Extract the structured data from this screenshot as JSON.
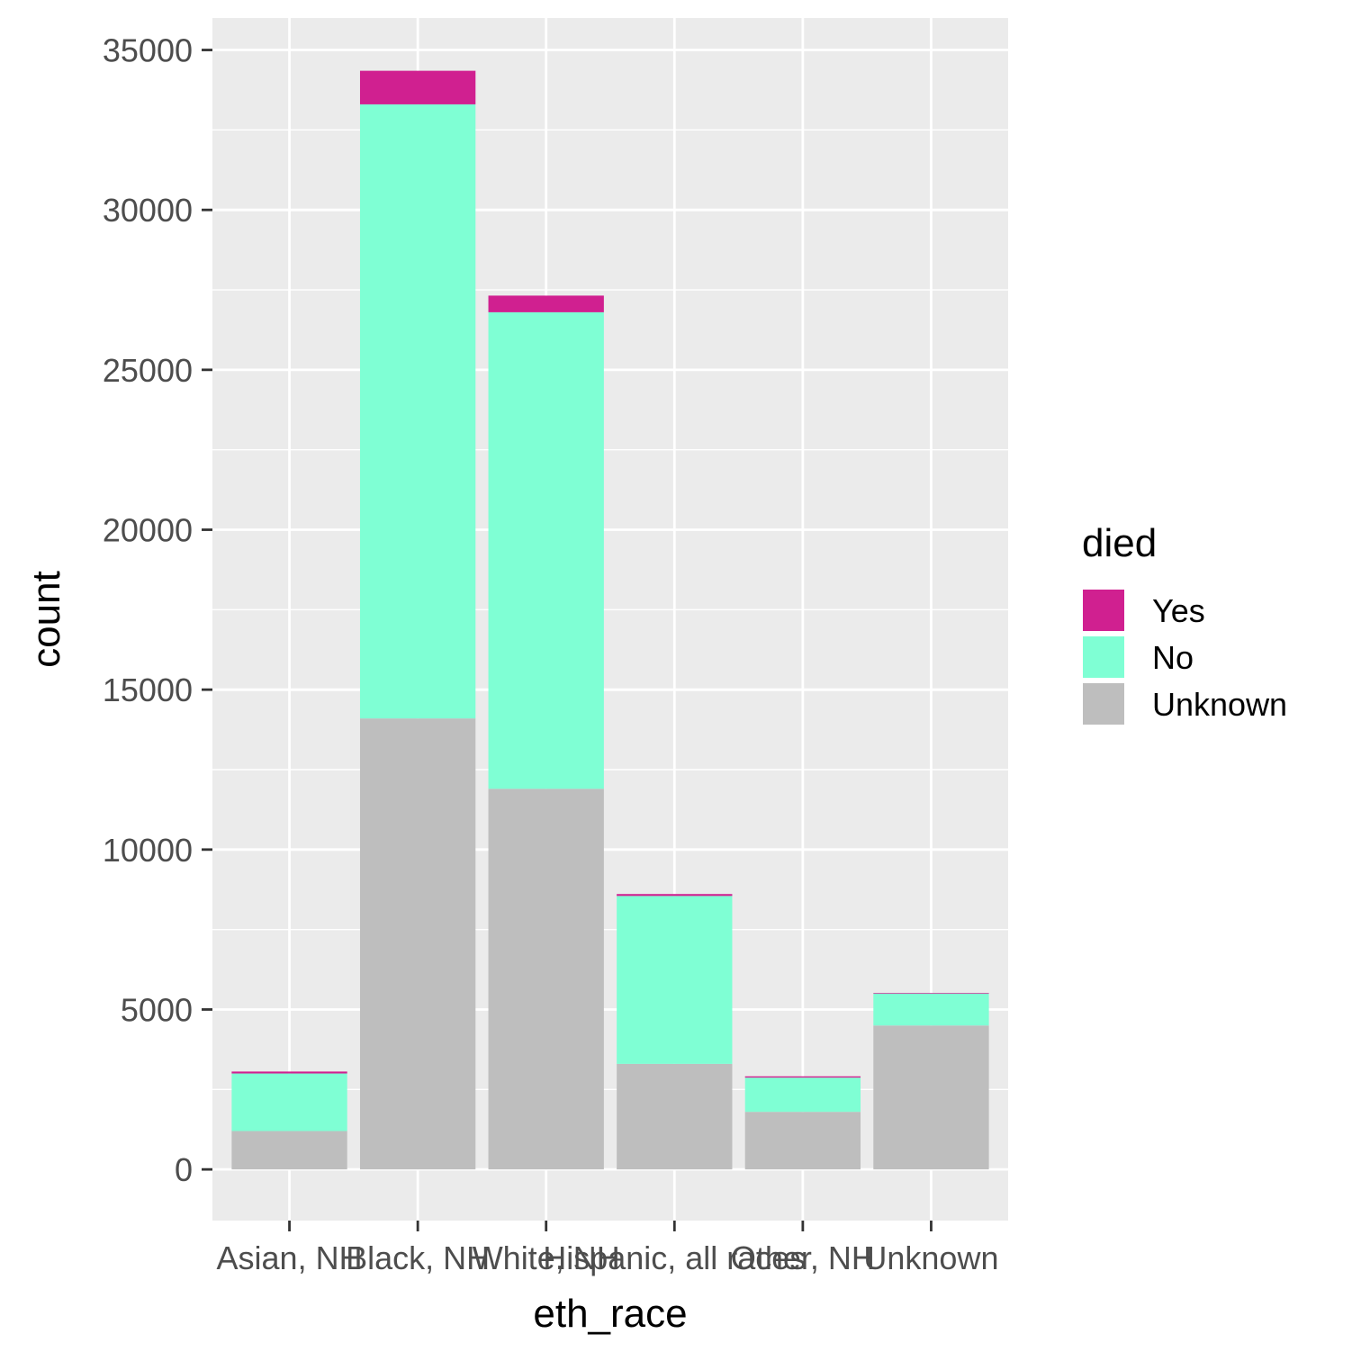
{
  "chart_data": {
    "type": "bar",
    "stacked": true,
    "categories": [
      "Asian, NH",
      "Black, NH",
      "White, NH",
      "Hispanic, all races",
      "Other, NH",
      "Unknown"
    ],
    "series": [
      {
        "name": "Unknown",
        "color": "#bebebe",
        "values": [
          1200,
          14100,
          11900,
          3300,
          1800,
          4500
        ]
      },
      {
        "name": "No",
        "color": "#7fffd4",
        "values": [
          1800,
          19200,
          14900,
          5250,
          1070,
          1000
        ]
      },
      {
        "name": "Yes",
        "color": "#d02090",
        "values": [
          60,
          1050,
          520,
          60,
          40,
          20
        ]
      }
    ],
    "legend_order": [
      "Yes",
      "No",
      "Unknown"
    ],
    "xlabel": "eth_race",
    "ylabel": "count",
    "yticks": [
      0,
      5000,
      10000,
      15000,
      20000,
      25000,
      30000,
      35000
    ],
    "ylim": [
      -1600,
      36000
    ],
    "grid": true,
    "legend": {
      "title": "died",
      "position": "right"
    },
    "panel_background": "#ebebeb",
    "grid_color": "#ffffff"
  }
}
